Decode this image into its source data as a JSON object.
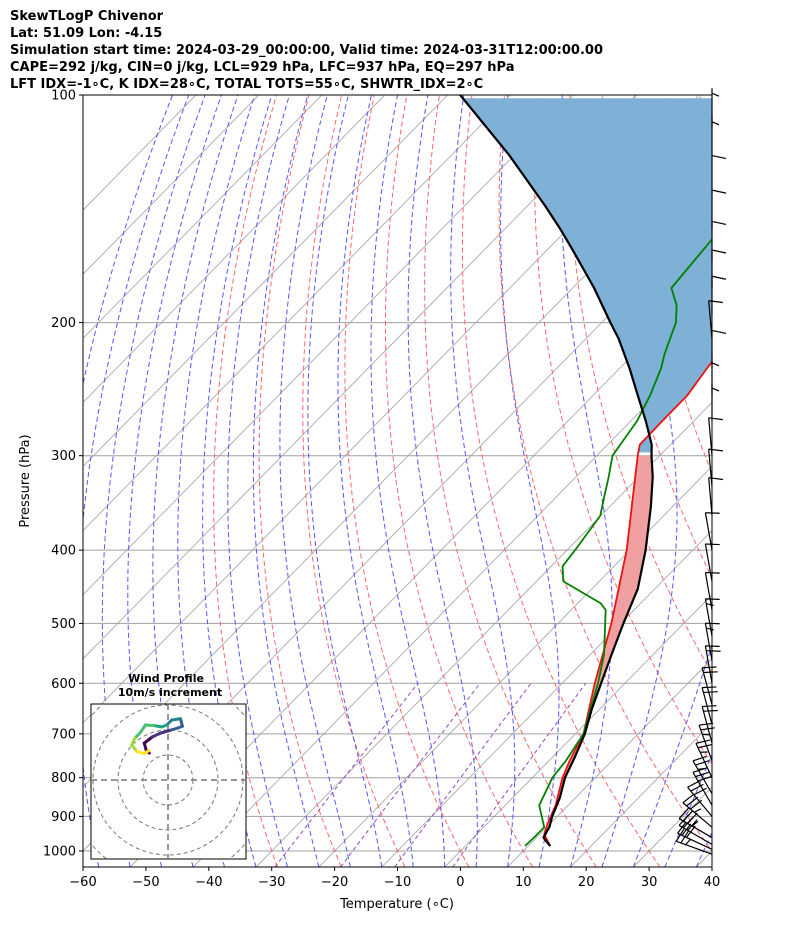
{
  "header": {
    "lines": [
      "SkewTLogP Chivenor",
      "Lat: 51.09   Lon: -4.15",
      "Simulation start time: 2024-03-29_00:00:00, Valid time: 2024-03-31T12:00:00.00",
      "CAPE=292 j/kg, CIN=0 j/kg, LCL=929 hPa, LFC=937 hPa, EQ=297 hPa",
      "LFT IDX=-1∘C, K IDX=28∘C, TOTAL TOTS=55∘C, SHWTR_IDX=2∘C"
    ]
  },
  "colors": {
    "temperature": "#ee1111",
    "dewpoint": "#008000",
    "parcel": "#000000",
    "cape_fill": "#7fb0d5",
    "cin_fill": "#f0a0a0",
    "dry_adiabat": "#ff6666",
    "moist_adiabat": "#5555ff",
    "mixing_ratio": "#9a45c8",
    "isotherm": "#a0a0a0",
    "isobar": "#a0a0a0"
  },
  "chart_data": {
    "type": "line",
    "title": "SkewTLogP Chivenor",
    "xlabel": "Temperature (∘C)",
    "ylabel": "Pressure (hPa)",
    "xlim": [
      -60,
      40
    ],
    "ylim": [
      1050,
      100
    ],
    "yscale": "log",
    "skew": true,
    "x_ticks": [
      "−60",
      "−50",
      "−40",
      "−30",
      "−20",
      "−10",
      "0",
      "10",
      "20",
      "30",
      "40"
    ],
    "y_ticks": [
      "1000",
      "900",
      "800",
      "700",
      "600",
      "500",
      "400",
      "300",
      "200",
      "100"
    ],
    "series": [
      {
        "role": "temperature",
        "p": [
          985,
          950,
          920,
          870,
          800,
          760,
          700,
          600,
          500,
          400,
          300,
          290,
          270,
          250,
          230,
          210,
          200,
          180,
          160,
          150,
          140,
          130,
          120,
          110,
          105,
          100
        ],
        "t": [
          13.5,
          10.7,
          9.6,
          8.0,
          4.8,
          3.3,
          1.3,
          -4.8,
          -11.5,
          -20.5,
          -33.5,
          -34.9,
          -35.0,
          -35.0,
          -36.1,
          -37.1,
          -38.5,
          -40.0,
          -42.5,
          -44.8,
          -46.7,
          -48.5,
          -50.8,
          -53.0,
          -54.4,
          -55.9
        ]
      },
      {
        "role": "dewpoint",
        "p": [
          985,
          960,
          930,
          870,
          800,
          760,
          700,
          600,
          550,
          480,
          470,
          440,
          420,
          400,
          360,
          340,
          320,
          300,
          290,
          270,
          250,
          230,
          220,
          200,
          190,
          180,
          150,
          100
        ],
        "t": [
          9.5,
          9.6,
          9.6,
          5.4,
          3.2,
          2.7,
          1.3,
          -4.3,
          -7.8,
          -14.5,
          -16.4,
          -25.7,
          -28.2,
          -28.7,
          -30.1,
          -32.4,
          -34.8,
          -37.5,
          -38.0,
          -39.0,
          -40.9,
          -43.4,
          -45.1,
          -48.2,
          -50.7,
          -54.3,
          -55.7,
          -63.1
        ]
      },
      {
        "role": "parcel",
        "p": [
          985,
          960,
          929,
          900,
          850,
          800,
          750,
          700,
          650,
          600,
          550,
          500,
          450,
          400,
          350,
          320,
          300,
          290,
          270,
          250,
          230,
          210,
          200,
          180,
          160,
          150,
          140,
          120,
          100
        ],
        "t": [
          13.5,
          11.1,
          10.4,
          9.2,
          7.5,
          5.2,
          3.5,
          1.5,
          -1.2,
          -3.8,
          -6.6,
          -9.6,
          -12.7,
          -17.5,
          -23.5,
          -27.8,
          -31.3,
          -33.0,
          -37.6,
          -42.8,
          -48.4,
          -54.8,
          -58.6,
          -66.6,
          -76.1,
          -81.4,
          -87.3,
          -100.9,
          -118.0
        ]
      }
    ],
    "wind_barbs": {
      "p": [
        1010,
        995,
        980,
        960,
        930,
        900,
        870,
        840,
        800,
        760,
        720,
        680,
        640,
        600,
        560,
        520,
        480,
        440,
        400,
        360,
        330,
        300,
        270,
        250,
        230,
        210,
        195,
        180,
        165,
        150,
        135,
        120,
        110
      ],
      "speed_kt": [
        25,
        30,
        30,
        35,
        35,
        30,
        30,
        25,
        25,
        25,
        20,
        20,
        20,
        20,
        15,
        15,
        10,
        10,
        10,
        10,
        10,
        10,
        5,
        5,
        10,
        10,
        10,
        10,
        10,
        10,
        10,
        5,
        5
      ],
      "direction_deg": [
        290,
        295,
        300,
        300,
        310,
        320,
        330,
        330,
        335,
        340,
        345,
        345,
        345,
        350,
        350,
        350,
        350,
        350,
        350,
        355,
        355,
        355,
        0,
        0,
        0,
        355,
        0,
        0,
        0,
        0,
        0,
        0,
        0
      ]
    },
    "hodograph": {
      "title": "Wind Profile",
      "subtitle": "10m/s increment",
      "u": [
        -3.0,
        -3.5,
        -3.8,
        -2.5,
        -1.2,
        0.5,
        1.5,
        2.3,
        2.0,
        0.6,
        -0.2,
        -1.0,
        -2.2,
        -3.6,
        -4.5,
        -5.3,
        -5.8,
        -5.0,
        -3.8,
        -3.1
      ],
      "v": [
        4.3,
        4.8,
        5.9,
        6.9,
        7.5,
        8.0,
        8.3,
        8.6,
        9.8,
        9.6,
        8.8,
        8.5,
        8.7,
        8.8,
        7.5,
        6.7,
        5.6,
        4.6,
        4.2,
        4.7
      ]
    }
  }
}
